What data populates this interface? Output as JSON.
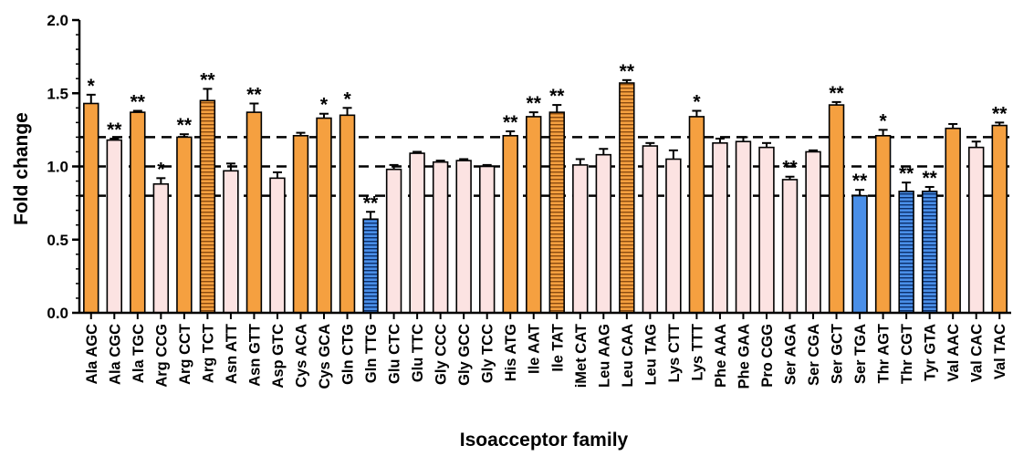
{
  "chart_data": {
    "type": "bar",
    "xlabel": "Isoacceptor family",
    "ylabel": "Fold change",
    "ylim": [
      0,
      2.0
    ],
    "yticks": [
      "0.0",
      "0.5",
      "1.0",
      "1.5",
      "2.0"
    ],
    "reference_lines": [
      0.8,
      1.0,
      1.2
    ],
    "grid": false,
    "colors": {
      "up": "#F5A040",
      "neutral": "#FCE3E2",
      "down": "#4A8FE8",
      "stroke": "#000000"
    },
    "categories": [
      "Ala AGC",
      "Ala CGC",
      "Ala TGC",
      "Arg CCG",
      "Arg CCT",
      "Arg TCT",
      "Asn ATT",
      "Asn GTT",
      "Asp GTC",
      "Cys ACA",
      "Cys GCA",
      "Gln CTG",
      "Gln TTG",
      "Glu CTC",
      "Glu TTC",
      "Gly CCC",
      "Gly GCC",
      "Gly TCC",
      "His ATG",
      "Ile AAT",
      "Ile TAT",
      "iMet CAT",
      "Leu AAG",
      "Leu CAA",
      "Leu TAG",
      "Lys CTT",
      "Lys TTT",
      "Phe AAA",
      "Phe GAA",
      "Pro CGG",
      "Ser AGA",
      "Ser CGA",
      "Ser GCT",
      "Ser TGA",
      "Thr AGT",
      "Thr CGT",
      "Tyr GTA",
      "Val AAC",
      "Val CAC",
      "Val TAC"
    ],
    "values": [
      1.43,
      1.18,
      1.37,
      0.88,
      1.2,
      1.45,
      0.97,
      1.37,
      0.92,
      1.21,
      1.33,
      1.35,
      0.64,
      0.98,
      1.09,
      1.03,
      1.04,
      1.0,
      1.21,
      1.34,
      1.37,
      1.01,
      1.08,
      1.57,
      1.14,
      1.05,
      1.34,
      1.16,
      1.17,
      1.13,
      0.91,
      1.1,
      1.42,
      0.8,
      1.21,
      0.83,
      0.83,
      1.26,
      1.13,
      1.28
    ],
    "errors": [
      0.06,
      0.01,
      0.01,
      0.04,
      0.02,
      0.08,
      0.05,
      0.06,
      0.04,
      0.02,
      0.03,
      0.05,
      0.05,
      0.03,
      0.01,
      0.01,
      0.01,
      0.01,
      0.03,
      0.03,
      0.05,
      0.04,
      0.04,
      0.02,
      0.02,
      0.06,
      0.04,
      0.03,
      0.03,
      0.03,
      0.02,
      0.01,
      0.02,
      0.04,
      0.04,
      0.06,
      0.03,
      0.03,
      0.04,
      0.02
    ],
    "style": [
      "up",
      "neutral",
      "up",
      "neutral",
      "up",
      "up-striped",
      "neutral",
      "up",
      "neutral",
      "up",
      "up",
      "up",
      "down-striped",
      "neutral",
      "neutral",
      "neutral",
      "neutral",
      "neutral",
      "up",
      "up",
      "up-striped",
      "neutral",
      "neutral",
      "up-striped",
      "neutral",
      "neutral",
      "up",
      "neutral",
      "neutral",
      "neutral",
      "neutral",
      "neutral",
      "up",
      "down",
      "up",
      "down-striped",
      "down-striped",
      "up",
      "neutral",
      "up"
    ],
    "significance": [
      "*",
      "**",
      "**",
      "*",
      "**",
      "**",
      "",
      "**",
      "",
      "",
      "*",
      "*",
      "**",
      "",
      "",
      "",
      "",
      "",
      "**",
      "**",
      "**",
      "",
      "",
      "**",
      "",
      "",
      "*",
      "",
      "",
      "",
      "**",
      "",
      "**",
      "**",
      "*",
      "**",
      "**",
      "",
      "",
      "**"
    ]
  }
}
